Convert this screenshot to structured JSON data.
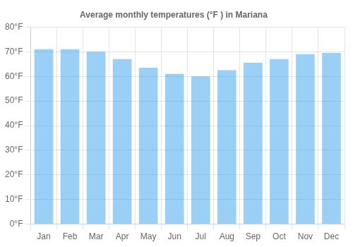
{
  "chart_data": {
    "type": "bar",
    "title": "Average monthly temperatures (°F ) in Mariana",
    "categories": [
      "Jan",
      "Feb",
      "Mar",
      "Apr",
      "May",
      "Jun",
      "Jul",
      "Aug",
      "Sep",
      "Oct",
      "Nov",
      "Dec"
    ],
    "values": [
      71,
      71,
      70,
      67,
      63.5,
      61,
      60,
      62.5,
      65.5,
      67,
      69,
      69.5
    ],
    "ylim": [
      0,
      80
    ],
    "yticks": [
      {
        "value": 0,
        "label": "0°F"
      },
      {
        "value": 10,
        "label": "10°F"
      },
      {
        "value": 20,
        "label": "20°F"
      },
      {
        "value": 30,
        "label": "30°F"
      },
      {
        "value": 40,
        "label": "40°F"
      },
      {
        "value": 50,
        "label": "50°F"
      },
      {
        "value": 60,
        "label": "60°F"
      },
      {
        "value": 70,
        "label": "70°F"
      },
      {
        "value": 80,
        "label": "80°F"
      }
    ],
    "grid": true
  }
}
